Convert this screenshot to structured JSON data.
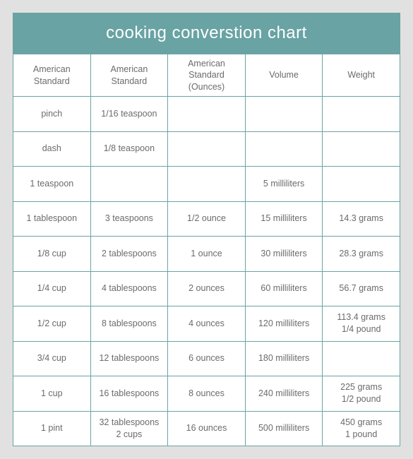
{
  "title": "cooking converstion chart",
  "colors": {
    "header_bg": "#69a3a4",
    "header_text": "#ffffff",
    "border": "#69a3a4",
    "cell_text": "#6b6b6b",
    "card_bg": "#ffffff",
    "page_bg": "#e1e1e1"
  },
  "table": {
    "columns": [
      "American Standard",
      "American Standard",
      "American Standard (Ounces)",
      "Volume",
      "Weight"
    ],
    "rows": [
      [
        "pinch",
        "1/16 teaspoon",
        "",
        "",
        ""
      ],
      [
        "dash",
        "1/8 teaspoon",
        "",
        "",
        ""
      ],
      [
        "1 teaspoon",
        "",
        "",
        "5 milliliters",
        ""
      ],
      [
        "1 tablespoon",
        "3 teaspoons",
        "1/2 ounce",
        "15 milliliters",
        "14.3 grams"
      ],
      [
        "1/8 cup",
        "2 tablespoons",
        "1 ounce",
        "30 milliliters",
        "28.3 grams"
      ],
      [
        "1/4 cup",
        "4 tablespoons",
        "2 ounces",
        "60 milliliters",
        "56.7 grams"
      ],
      [
        "1/2 cup",
        "8 tablespoons",
        "4 ounces",
        "120 milliliters",
        "113.4 grams\n1/4 pound"
      ],
      [
        "3/4 cup",
        "12 tablespoons",
        "6 ounces",
        "180 milliliters",
        ""
      ],
      [
        "1 cup",
        "16 tablespoons",
        "8 ounces",
        "240 milliliters",
        "225 grams\n1/2 pound"
      ],
      [
        "1 pint",
        "32 tablespoons\n2 cups",
        "16 ounces",
        "500 milliliters",
        "450 grams\n1 pound"
      ]
    ]
  }
}
